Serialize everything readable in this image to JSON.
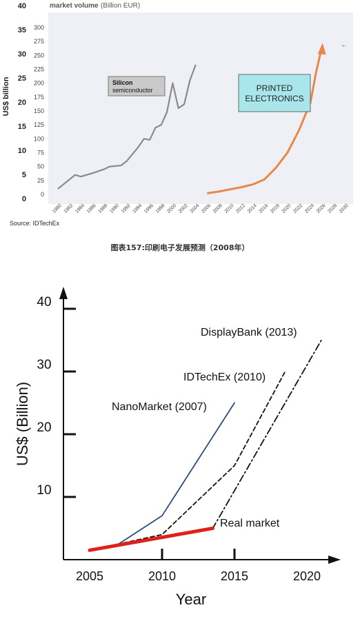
{
  "caption": "图表157:印刷电子发展预测（2008年）",
  "chart_data": [
    {
      "type": "line",
      "title": "market volume",
      "subtitle": "(Billion EUR)",
      "ylabel": "US$ billion",
      "source": "Source: IDTechEx",
      "y_usd_ticks": [
        "0",
        "5",
        "10",
        "15",
        "20",
        "25",
        "30",
        "35",
        "40"
      ],
      "y_eur_ticks": [
        "0",
        "25",
        "50",
        "75",
        "100",
        "125",
        "150",
        "175",
        "200",
        "225",
        "250",
        "275",
        "300"
      ],
      "x_ticks": [
        "1980",
        "1982",
        "1984",
        "1986",
        "1988",
        "1990",
        "1992",
        "1994",
        "1996",
        "1998",
        "2000",
        "2002",
        "2004",
        "2006",
        "2008",
        "2010",
        "2012",
        "2014",
        "2016",
        "2018",
        "2020",
        "2022",
        "2024",
        "2026",
        "2028",
        "2030"
      ],
      "xlim": [
        1980,
        2030
      ],
      "ylim_eur": [
        0,
        300
      ],
      "label_silicon_1": "Silicon",
      "label_silicon_2": "semiconductor",
      "label_pe_1": "PRINTED",
      "label_pe_2": "ELECTRONICS",
      "colors": {
        "silicon": "#8a8a8a",
        "printed": "#e8874a",
        "plot_bg": "#eef0f5"
      },
      "series": [
        {
          "name": "Silicon semiconductor",
          "x": [
            1980,
            1983,
            1984,
            1986,
            1988,
            1989,
            1990,
            1991,
            1992,
            1994,
            1995,
            1996,
            1997,
            1998,
            1999,
            2000,
            2001,
            2002,
            2003,
            2004
          ],
          "y": [
            10,
            35,
            32,
            38,
            45,
            50,
            51,
            52,
            60,
            85,
            100,
            98,
            120,
            125,
            148,
            200,
            155,
            162,
            205,
            233
          ]
        },
        {
          "name": "Printed electronics",
          "x": [
            2006,
            2008,
            2010,
            2012,
            2014,
            2016,
            2018,
            2020,
            2022,
            2024,
            2025,
            2026
          ],
          "y": [
            2,
            5,
            9,
            13,
            18,
            27,
            48,
            75,
            115,
            165,
            220,
            265
          ]
        }
      ]
    },
    {
      "type": "line",
      "xlabel": "Year",
      "ylabel": "US$ (Billion)",
      "xlim": [
        2002,
        2022
      ],
      "ylim": [
        0,
        42
      ],
      "x_ticks": [
        "2005",
        "2010",
        "2015",
        "2020"
      ],
      "y_ticks": [
        "10",
        "20",
        "30",
        "40"
      ],
      "colors": {
        "nanomarket": "#2c4a7a",
        "idtechex": "#111111",
        "displaybank": "#111111",
        "real": "#e0201b"
      },
      "series": [
        {
          "name": "NanoMarket (2007)",
          "x": [
            2005,
            2007,
            2010,
            2015
          ],
          "y": [
            1.5,
            2.5,
            7,
            25
          ]
        },
        {
          "name": "IDTechEx (2010)",
          "x": [
            2005,
            2010,
            2015,
            2018.5
          ],
          "y": [
            1.5,
            4,
            15,
            30
          ]
        },
        {
          "name": "DisplayBank (2013)",
          "x": [
            2005,
            2013.5,
            2016,
            2021
          ],
          "y": [
            1.5,
            5,
            15,
            35
          ]
        },
        {
          "name": "Real market",
          "x": [
            2005,
            2013.5
          ],
          "y": [
            1.5,
            5
          ]
        }
      ]
    }
  ]
}
